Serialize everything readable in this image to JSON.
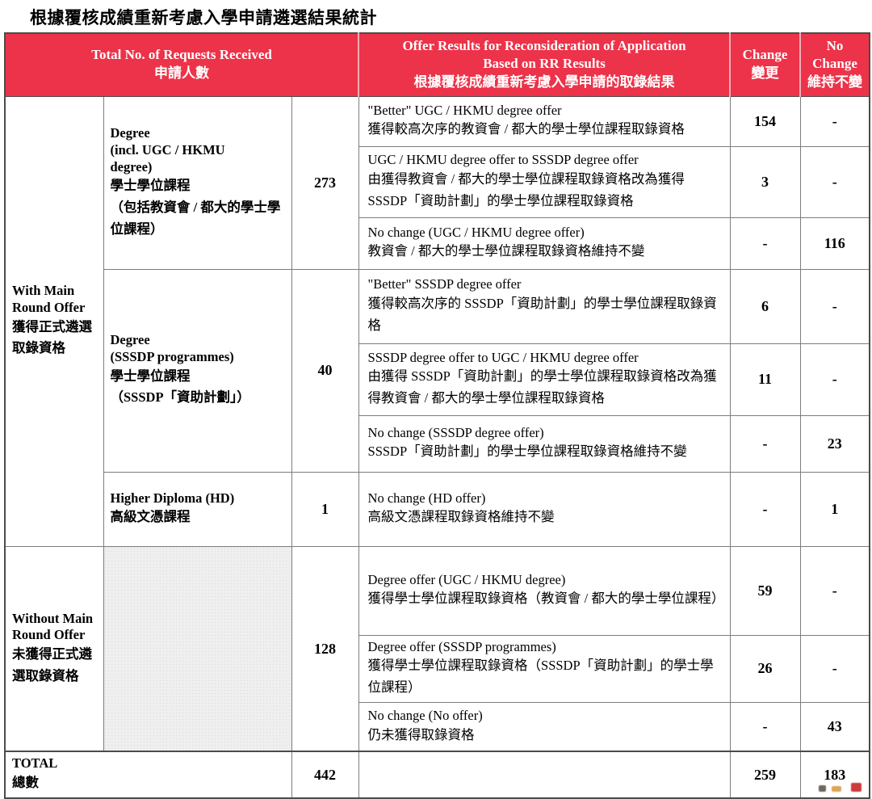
{
  "title": "根據覆核成績重新考慮入學申請遴選結果統計",
  "colors": {
    "header_bg": "#EC3349",
    "header_text": "#FFFFFF",
    "hatch_bg": "#EFEFEF",
    "border_dark": "#4B4B4B",
    "border_gray": "#7D7D7D"
  },
  "table": {
    "header": {
      "requests_en": "Total No. of Requests Received",
      "requests_zh": "申請人數",
      "offer_en": "Offer Results for Reconsideration of Application\nBased on RR Results",
      "offer_zh": "根據覆核成績重新考慮入學申請的取錄結果",
      "change_en": "Change",
      "change_zh": "變更",
      "no_change_en": "No Change",
      "no_change_zh": "維持不變"
    },
    "sections": {
      "with_offer": {
        "en": "With Main\nRound Offer",
        "zh": "獲得正式遴選\n取錄資格"
      },
      "without_offer": {
        "en": "Without Main\nRound Offer",
        "zh": "未獲得正式遴\n選取錄資格"
      }
    },
    "groups": {
      "degree_ugc": {
        "en": "Degree\n(incl. UGC / HKMU\ndegree)",
        "zh1": "學士學位課程",
        "zh2": "（包括教資會 / 都大的學士學位課程）",
        "count": "273"
      },
      "degree_sssdp": {
        "en": "Degree\n(SSSDP programmes)",
        "zh1": "學士學位課程",
        "zh2": "（SSSDP「資助計劃」）",
        "count": "40"
      },
      "higher_diploma": {
        "en": "Higher Diploma (HD)",
        "zh1": "高級文憑課程",
        "count": "1"
      },
      "without": {
        "count": "128"
      }
    },
    "rows": [
      {
        "en": "\"Better\" UGC / HKMU degree offer",
        "zh": "獲得較高次序的教資會 / 都大的學士學位課程取錄資格",
        "change": "154",
        "no_change": "-"
      },
      {
        "en": "UGC / HKMU degree offer to SSSDP degree offer",
        "zh": "由獲得教資會 / 都大的學士學位課程取錄資格改為獲得 SSSDP「資助計劃」的學士學位課程取錄資格",
        "change": "3",
        "no_change": "-"
      },
      {
        "en": "No change (UGC / HKMU degree offer)",
        "zh": "教資會 / 都大的學士學位課程取錄資格維持不變",
        "change": "-",
        "no_change": "116"
      },
      {
        "en": "\"Better\" SSSDP degree offer",
        "zh": "獲得較高次序的 SSSDP「資助計劃」的學士學位課程取錄資格",
        "change": "6",
        "no_change": "-"
      },
      {
        "en": "SSSDP degree offer to UGC / HKMU degree offer",
        "zh": "由獲得 SSSDP「資助計劃」的學士學位課程取錄資格改為獲得教資會 / 都大的學士學位課程取錄資格",
        "change": "11",
        "no_change": "-"
      },
      {
        "en": "No change (SSSDP degree offer)",
        "zh": "SSSDP「資助計劃」的學士學位課程取錄資格維持不變",
        "change": "-",
        "no_change": "23"
      },
      {
        "en": "No change (HD offer)",
        "zh": "高級文憑課程取錄資格維持不變",
        "change": "-",
        "no_change": "1"
      },
      {
        "en": "Degree offer (UGC / HKMU degree)",
        "zh": "獲得學士學位課程取錄資格（教資會 / 都大的學士學位課程）",
        "change": "59",
        "no_change": "-"
      },
      {
        "en": "Degree offer (SSSDP programmes)",
        "zh": "獲得學士學位課程取錄資格（SSSDP「資助計劃」的學士學位課程）",
        "change": "26",
        "no_change": "-"
      },
      {
        "en": "No change (No offer)",
        "zh": "仍未獲得取錄資格",
        "change": "-",
        "no_change": "43"
      }
    ],
    "total": {
      "en": "TOTAL",
      "zh": "總數",
      "requests": "442",
      "offer": "",
      "change": "259",
      "no_change": "183"
    }
  }
}
